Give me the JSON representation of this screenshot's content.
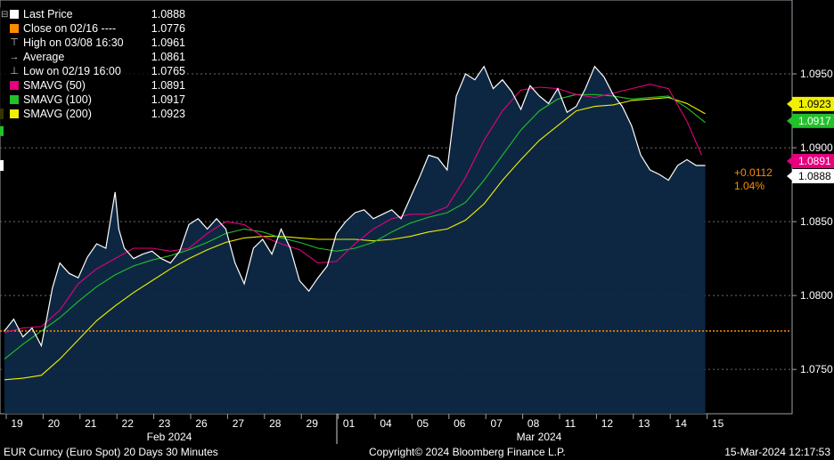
{
  "chart_data": {
    "type": "line",
    "title": "",
    "ylim": [
      1.072,
      1.1
    ],
    "y_ticks": [
      1.075,
      1.08,
      1.085,
      1.09,
      1.095
    ],
    "y_tick_labels": [
      "1.0750",
      "1.0800",
      "1.0850",
      "1.0900",
      "1.0950"
    ],
    "x_ticks": [
      "19",
      "20",
      "21",
      "22",
      "23",
      "26",
      "27",
      "28",
      "29",
      "01",
      "04",
      "05",
      "06",
      "07",
      "08",
      "11",
      "12",
      "13",
      "14",
      "15"
    ],
    "month_labels": [
      "Feb 2024",
      "Mar 2024"
    ],
    "grid": true,
    "legend_position": "top-left",
    "last_change": "+0.0112",
    "last_change_pct": "1.04%",
    "reference_line": {
      "name": "Close on 02/16",
      "value": 1.0776
    },
    "legend": [
      {
        "label": "Last Price",
        "value": "1.0888",
        "color": "#ffffff",
        "symbol": "box"
      },
      {
        "label": "Close on 02/16 ----",
        "value": "1.0776",
        "color": "#ff8c00",
        "symbol": "box"
      },
      {
        "label": "High on 03/08 16:30",
        "value": "1.0961",
        "color": "#cccccc",
        "symbol": "T"
      },
      {
        "label": "Average",
        "value": "1.0861",
        "color": "#cccccc",
        "symbol": "avg"
      },
      {
        "label": "Low on 02/19 16:00",
        "value": "1.0765",
        "color": "#cccccc",
        "symbol": "low"
      },
      {
        "label": "SMAVG (50)",
        "value": "1.0891",
        "color": "#e6007e",
        "symbol": "box"
      },
      {
        "label": "SMAVG (100)",
        "value": "1.0917",
        "color": "#22c02a",
        "symbol": "box"
      },
      {
        "label": "SMAVG (200)",
        "value": "1.0923",
        "color": "#f0f000",
        "symbol": "box"
      }
    ],
    "series": [
      {
        "name": "Last Price",
        "color": "#ffffff",
        "x": [
          0,
          0.25,
          0.5,
          0.75,
          1,
          1.15,
          1.3,
          1.5,
          1.75,
          2,
          2.25,
          2.5,
          2.75,
          3,
          3.1,
          3.25,
          3.5,
          3.75,
          4,
          4.25,
          4.5,
          4.75,
          5,
          5.25,
          5.5,
          5.75,
          6,
          6.25,
          6.5,
          6.75,
          7,
          7.25,
          7.5,
          7.75,
          8,
          8.25,
          8.5,
          8.75,
          9,
          9.25,
          9.5,
          9.75,
          10,
          10.25,
          10.5,
          10.75,
          11,
          11.25,
          11.5,
          11.75,
          12,
          12.25,
          12.5,
          12.75,
          13,
          13.25,
          13.5,
          13.75,
          14,
          14.25,
          14.5,
          14.75,
          15,
          15.25,
          15.5,
          15.75,
          16,
          16.25,
          16.5,
          16.75,
          17,
          17.25,
          17.5,
          17.75,
          18,
          18.25,
          18.5,
          18.75,
          19
        ],
        "y": [
          1.0776,
          1.0784,
          1.0772,
          1.0778,
          1.0766,
          1.0785,
          1.0805,
          1.0822,
          1.0815,
          1.0812,
          1.0826,
          1.0835,
          1.0832,
          1.087,
          1.0845,
          1.0832,
          1.0825,
          1.0828,
          1.083,
          1.0825,
          1.0822,
          1.083,
          1.0848,
          1.0852,
          1.0845,
          1.0852,
          1.0845,
          1.0822,
          1.0808,
          1.0832,
          1.0838,
          1.0828,
          1.0845,
          1.0832,
          1.081,
          1.0803,
          1.0812,
          1.082,
          1.0842,
          1.085,
          1.0856,
          1.0858,
          1.0852,
          1.0855,
          1.0858,
          1.0852,
          1.0866,
          1.088,
          1.0895,
          1.0893,
          1.0885,
          1.0935,
          1.095,
          1.0946,
          1.0955,
          1.094,
          1.0946,
          1.0938,
          1.0926,
          1.0942,
          1.0935,
          1.093,
          1.094,
          1.0924,
          1.0928,
          1.094,
          1.0955,
          1.0948,
          1.0936,
          1.0928,
          1.0915,
          1.0895,
          1.0885,
          1.0882,
          1.0878,
          1.0888,
          1.0892,
          1.0888,
          1.0888
        ]
      },
      {
        "name": "SMAVG (50)",
        "color": "#e6007e",
        "x": [
          0,
          0.5,
          1,
          1.5,
          2,
          2.5,
          3,
          3.5,
          4,
          4.5,
          5,
          5.5,
          6,
          6.5,
          7,
          7.5,
          8,
          8.5,
          9,
          9.5,
          10,
          10.5,
          11,
          11.5,
          12,
          12.5,
          13,
          13.5,
          14,
          14.5,
          15,
          15.5,
          16,
          16.5,
          17,
          17.5,
          18,
          18.5,
          18.9
        ],
        "y": [
          1.0775,
          1.0778,
          1.0779,
          1.079,
          1.0808,
          1.0818,
          1.0825,
          1.0832,
          1.0832,
          1.083,
          1.0832,
          1.0842,
          1.085,
          1.0848,
          1.084,
          1.0835,
          1.0831,
          1.0822,
          1.0823,
          1.0835,
          1.0845,
          1.0852,
          1.0855,
          1.0855,
          1.086,
          1.088,
          1.0905,
          1.0925,
          1.0939,
          1.0941,
          1.094,
          1.0936,
          1.0934,
          1.0937,
          1.094,
          1.0943,
          1.094,
          1.0918,
          1.0895
        ]
      },
      {
        "name": "SMAVG (100)",
        "color": "#22c02a",
        "x": [
          0,
          0.5,
          1,
          1.5,
          2,
          2.5,
          3,
          3.5,
          4,
          4.5,
          5,
          5.5,
          6,
          6.5,
          7,
          7.5,
          8,
          8.5,
          9,
          9.5,
          10,
          10.5,
          11,
          11.5,
          12,
          12.5,
          13,
          13.5,
          14,
          14.5,
          15,
          15.5,
          16,
          16.5,
          17,
          17.5,
          18,
          18.5,
          19
        ],
        "y": [
          1.0757,
          1.0767,
          1.0776,
          1.0785,
          1.0796,
          1.0806,
          1.0814,
          1.082,
          1.0824,
          1.0827,
          1.0831,
          1.0836,
          1.0842,
          1.0845,
          1.0843,
          1.0839,
          1.0836,
          1.0832,
          1.083,
          1.0832,
          1.0836,
          1.0843,
          1.0849,
          1.0853,
          1.0856,
          1.0863,
          1.0878,
          1.0895,
          1.0912,
          1.0925,
          1.0933,
          1.0936,
          1.0936,
          1.0935,
          1.0933,
          1.0934,
          1.0935,
          1.0927,
          1.0917
        ]
      },
      {
        "name": "SMAVG (200)",
        "color": "#f0f000",
        "x": [
          0,
          0.5,
          1,
          1.5,
          2,
          2.5,
          3,
          3.5,
          4,
          4.5,
          5,
          5.5,
          6,
          6.5,
          7,
          7.5,
          8,
          8.5,
          9,
          9.5,
          10,
          10.5,
          11,
          11.5,
          12,
          12.5,
          13,
          13.5,
          14,
          14.5,
          15,
          15.5,
          16,
          16.5,
          17,
          17.5,
          18,
          18.5,
          19
        ],
        "y": [
          1.0743,
          1.0744,
          1.0746,
          1.0757,
          1.077,
          1.0783,
          1.0793,
          1.0802,
          1.081,
          1.0818,
          1.0825,
          1.0831,
          1.0836,
          1.0839,
          1.084,
          1.084,
          1.0839,
          1.0838,
          1.0838,
          1.0838,
          1.0837,
          1.0838,
          1.084,
          1.0843,
          1.0845,
          1.0851,
          1.0862,
          1.0878,
          1.0892,
          1.0905,
          1.0915,
          1.0925,
          1.0928,
          1.0929,
          1.0932,
          1.0933,
          1.0934,
          1.093,
          1.0923
        ]
      }
    ]
  },
  "footer": {
    "left": "EUR Curncy (Euro Spot) 20 Days 30 Minutes",
    "center": "Copyright© 2024 Bloomberg Finance L.P.",
    "right": "15-Mar-2024 12:17:53"
  }
}
